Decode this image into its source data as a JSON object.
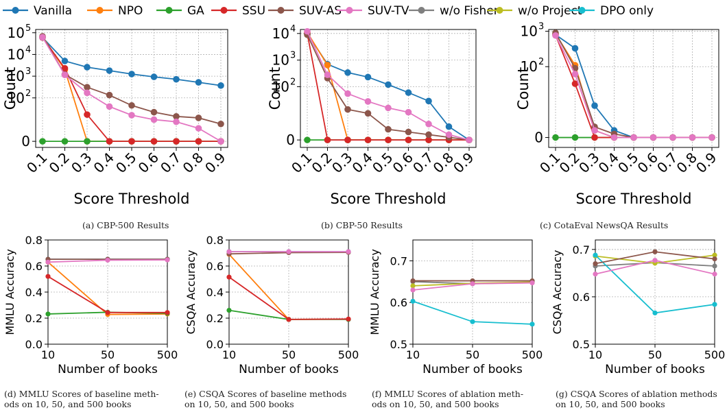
{
  "legend": [
    {
      "name": "Vanilla",
      "color": "#1f77b4"
    },
    {
      "name": "NPO",
      "color": "#ff7f0e"
    },
    {
      "name": "GA",
      "color": "#2ca02c"
    },
    {
      "name": "SSU",
      "color": "#d62728"
    },
    {
      "name": "SUV-AS",
      "color": "#8c564b"
    },
    {
      "name": "SUV-TV",
      "color": "#e377c2"
    },
    {
      "name": "w/o Fisher",
      "color": "#7f7f7f"
    },
    {
      "name": "w/o Project",
      "color": "#bcbd22"
    },
    {
      "name": "DPO only",
      "color": "#17becf"
    }
  ],
  "captions": {
    "a": "(a) CBP-500 Results",
    "b": "(b) CBP-50 Results",
    "c": "(c) CotaEval NewsQA Results",
    "d_line1": "(d) MMLU Scores of baseline meth-",
    "d_line2": "ods on 10, 50, and 500 books",
    "e_line1": "(e) CSQA Scores of baseline methods",
    "e_line2": "on 10, 50, and 500 books",
    "f_line1": "(f) MMLU Scores of ablation meth-",
    "f_line2": "ods on 10, 50, and 500 books",
    "g_line1": "(g) CSQA Scores of ablation methods",
    "g_line2": "on 10, 50, and 500 books"
  },
  "chart_data": [
    {
      "id": "a",
      "type": "line",
      "xlabel": "Score Threshold",
      "ylabel": "Count",
      "yscale": "symlog",
      "yticks": [
        {
          "v": 0,
          "t": "0"
        },
        {
          "v": 2,
          "t": "10",
          "e": "2"
        },
        {
          "v": 3,
          "t": "10",
          "e": "3"
        },
        {
          "v": 4,
          "t": "10",
          "e": "4"
        },
        {
          "v": 5,
          "t": "10",
          "e": "5"
        }
      ],
      "ymax": 5.15,
      "x": [
        "0.1",
        "0.2",
        "0.3",
        "0.4",
        "0.5",
        "0.6",
        "0.7",
        "0.8",
        "0.9"
      ],
      "series": [
        {
          "name": "Vanilla",
          "color": "#1f77b4",
          "values": [
            60000,
            5000,
            2600,
            1800,
            1250,
            930,
            720,
            520,
            370
          ]
        },
        {
          "name": "NPO",
          "color": "#ff7f0e",
          "values": [
            65000,
            2000,
            0,
            0,
            0,
            0,
            0,
            0,
            0
          ]
        },
        {
          "name": "GA",
          "color": "#2ca02c",
          "values": [
            0,
            0,
            0,
            0,
            0,
            0,
            0,
            0,
            0
          ]
        },
        {
          "name": "SSU",
          "color": "#d62728",
          "values": [
            60000,
            2300,
            17,
            0,
            0,
            0,
            0,
            0,
            0
          ]
        },
        {
          "name": "SUV-AS",
          "color": "#8c564b",
          "values": [
            68000,
            1200,
            310,
            135,
            45,
            22,
            14,
            12,
            8
          ]
        },
        {
          "name": "SUV-TV",
          "color": "#e377c2",
          "values": [
            62000,
            1150,
            170,
            40,
            16,
            10,
            9,
            6,
            0
          ]
        }
      ]
    },
    {
      "id": "b",
      "type": "line",
      "xlabel": "Score Threshold",
      "ylabel": "Count",
      "yscale": "symlog",
      "yticks": [
        {
          "v": 0,
          "t": "0"
        },
        {
          "v": 2,
          "t": "10",
          "e": "2"
        },
        {
          "v": 3,
          "t": "10",
          "e": "3"
        },
        {
          "v": 4,
          "t": "10",
          "e": "4"
        }
      ],
      "ymax": 4.15,
      "x": [
        "0.1",
        "0.2",
        "0.3",
        "0.4",
        "0.5",
        "0.6",
        "0.7",
        "0.8",
        "0.9"
      ],
      "series": [
        {
          "name": "Vanilla",
          "color": "#1f77b4",
          "values": [
            10000,
            700,
            340,
            230,
            120,
            60,
            29,
            5,
            0
          ]
        },
        {
          "name": "NPO",
          "color": "#ff7f0e",
          "values": [
            11000,
            650,
            0,
            0,
            0,
            0,
            0,
            0,
            0
          ]
        },
        {
          "name": "GA",
          "color": "#2ca02c",
          "values": [
            0,
            0,
            0,
            0,
            0,
            0,
            0,
            0,
            0
          ]
        },
        {
          "name": "SSU",
          "color": "#d62728",
          "values": [
            10000,
            0,
            0,
            0,
            0,
            0,
            0,
            0,
            0
          ]
        },
        {
          "name": "SUV-AS",
          "color": "#8c564b",
          "values": [
            9000,
            210,
            14,
            10,
            4,
            3,
            2,
            1,
            0
          ]
        },
        {
          "name": "SUV-TV",
          "color": "#e377c2",
          "values": [
            12000,
            280,
            55,
            28,
            16,
            11,
            6,
            2,
            0
          ]
        }
      ]
    },
    {
      "id": "c",
      "type": "line",
      "xlabel": "Score Threshold",
      "ylabel": "Count",
      "yscale": "symlog",
      "yticks": [
        {
          "v": 0,
          "t": "0"
        },
        {
          "v": 2,
          "t": "10",
          "e": "2"
        },
        {
          "v": 3,
          "t": "10",
          "e": "3"
        }
      ],
      "ymax": 3.05,
      "x": [
        "0.1",
        "0.2",
        "0.3",
        "0.4",
        "0.5",
        "0.6",
        "0.7",
        "0.8",
        "0.9"
      ],
      "series": [
        {
          "name": "Vanilla",
          "color": "#1f77b4",
          "values": [
            800,
            330,
            9,
            2,
            0,
            0,
            0,
            0,
            0
          ]
        },
        {
          "name": "NPO",
          "color": "#ff7f0e",
          "values": [
            850,
            110,
            2,
            0,
            0,
            0,
            0,
            0,
            0
          ]
        },
        {
          "name": "GA",
          "color": "#2ca02c",
          "values": [
            0,
            0,
            0,
            0,
            0,
            0,
            0,
            0,
            0
          ]
        },
        {
          "name": "SSU",
          "color": "#d62728",
          "values": [
            780,
            33,
            0,
            0,
            0,
            0,
            0,
            0,
            0
          ]
        },
        {
          "name": "SUV-AS",
          "color": "#8c564b",
          "values": [
            900,
            90,
            3,
            1,
            0,
            0,
            0,
            0,
            0
          ]
        },
        {
          "name": "SUV-TV",
          "color": "#e377c2",
          "values": [
            760,
            62,
            2,
            0,
            0,
            0,
            0,
            0,
            0
          ]
        }
      ]
    },
    {
      "id": "d",
      "type": "line",
      "xlabel": "Number of books",
      "ylabel": "MMLU Accuracy",
      "ylim": [
        0.0,
        0.8
      ],
      "yticks": [
        "0.0",
        "0.2",
        "0.4",
        "0.6",
        "0.8"
      ],
      "x": [
        "10",
        "50",
        "500"
      ],
      "series": [
        {
          "name": "Vanilla",
          "color": "#1f77b4",
          "values": [
            0.652,
            0.652,
            0.652
          ]
        },
        {
          "name": "NPO",
          "color": "#ff7f0e",
          "values": [
            0.63,
            0.228,
            0.232
          ]
        },
        {
          "name": "GA",
          "color": "#2ca02c",
          "values": [
            0.232,
            0.245,
            0.237
          ]
        },
        {
          "name": "SSU",
          "color": "#d62728",
          "values": [
            0.52,
            0.243,
            0.243
          ]
        },
        {
          "name": "SUV-AS",
          "color": "#8c564b",
          "values": [
            0.652,
            0.652,
            0.652
          ]
        },
        {
          "name": "SUV-TV",
          "color": "#e377c2",
          "values": [
            0.63,
            0.645,
            0.647
          ]
        }
      ]
    },
    {
      "id": "e",
      "type": "line",
      "xlabel": "Number of books",
      "ylabel": "CSQA Accuracy",
      "ylim": [
        0.0,
        0.8
      ],
      "yticks": [
        "0.0",
        "0.2",
        "0.4",
        "0.6",
        "0.8"
      ],
      "x": [
        "10",
        "50",
        "500"
      ],
      "series": [
        {
          "name": "Vanilla",
          "color": "#1f77b4",
          "values": [
            0.71,
            0.71,
            0.71
          ]
        },
        {
          "name": "NPO",
          "color": "#ff7f0e",
          "values": [
            0.69,
            0.19,
            0.192
          ]
        },
        {
          "name": "GA",
          "color": "#2ca02c",
          "values": [
            0.26,
            0.19,
            0.19
          ]
        },
        {
          "name": "SSU",
          "color": "#d62728",
          "values": [
            0.515,
            0.19,
            0.193
          ]
        },
        {
          "name": "SUV-AS",
          "color": "#8c564b",
          "values": [
            0.693,
            0.703,
            0.705
          ]
        },
        {
          "name": "SUV-TV",
          "color": "#e377c2",
          "values": [
            0.71,
            0.71,
            0.71
          ]
        }
      ]
    },
    {
      "id": "f",
      "type": "line",
      "xlabel": "Number of books",
      "ylabel": "MMLU Accuracy",
      "ylim": [
        0.5,
        0.75
      ],
      "yticks": [
        "0.5",
        "0.6",
        "0.7"
      ],
      "x": [
        "10",
        "50",
        "500"
      ],
      "series": [
        {
          "name": "w/o Fisher",
          "color": "#7f7f7f",
          "values": [
            0.65,
            0.645,
            0.648
          ]
        },
        {
          "name": "w/o Project",
          "color": "#bcbd22",
          "values": [
            0.64,
            0.646,
            0.649
          ]
        },
        {
          "name": "DPO only",
          "color": "#17becf",
          "values": [
            0.603,
            0.554,
            0.548
          ]
        },
        {
          "name": "SUV-AS",
          "color": "#8c564b",
          "values": [
            0.652,
            0.652,
            0.652
          ]
        },
        {
          "name": "SUV-TV",
          "color": "#e377c2",
          "values": [
            0.63,
            0.645,
            0.647
          ]
        }
      ]
    },
    {
      "id": "g",
      "type": "line",
      "xlabel": "Number of books",
      "ylabel": "CSQA Accuracy",
      "ylim": [
        0.5,
        0.72
      ],
      "yticks": [
        "0.5",
        "0.6",
        "0.7"
      ],
      "x": [
        "10",
        "50",
        "500"
      ],
      "series": [
        {
          "name": "w/o Fisher",
          "color": "#7f7f7f",
          "values": [
            0.665,
            0.672,
            0.665
          ]
        },
        {
          "name": "w/o Project",
          "color": "#bcbd22",
          "values": [
            0.686,
            0.671,
            0.688
          ]
        },
        {
          "name": "DPO only",
          "color": "#17becf",
          "values": [
            0.688,
            0.566,
            0.584
          ]
        },
        {
          "name": "SUV-AS",
          "color": "#8c564b",
          "values": [
            0.67,
            0.695,
            0.68
          ]
        },
        {
          "name": "SUV-TV",
          "color": "#e377c2",
          "values": [
            0.648,
            0.677,
            0.648
          ]
        }
      ]
    }
  ]
}
